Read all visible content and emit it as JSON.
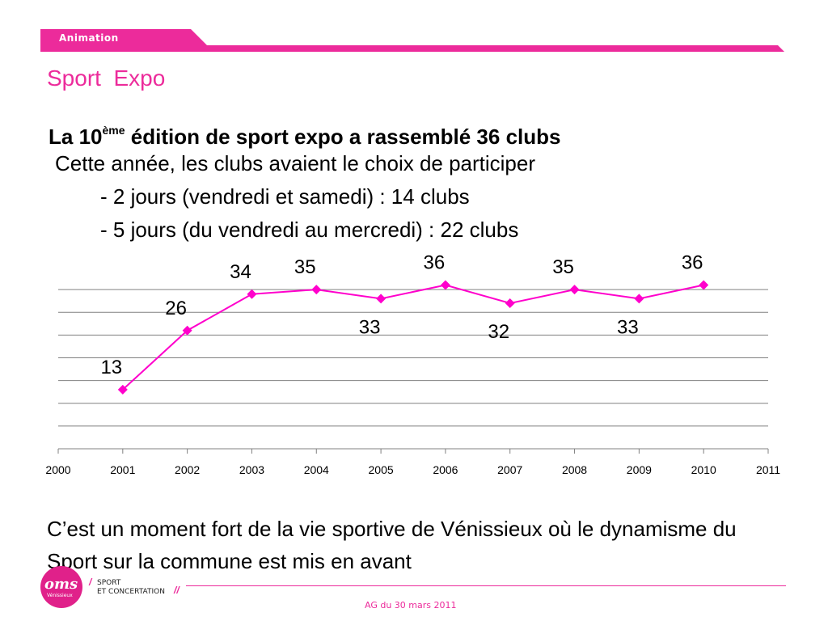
{
  "header": {
    "section_label": "Animation",
    "accent_color": "#ec2b9b"
  },
  "title": "Sport  Expo",
  "body": {
    "heading_prefix": "La 10",
    "heading_sup": "ème",
    "heading_rest": " édition de sport expo a rassemblé 36 clubs",
    "line2": "Cette année, les clubs avaient le choix de participer",
    "line3": "- 2 jours (vendredi et samedi) : 14 clubs",
    "line4": "- 5 jours (du vendredi au mercredi) : 22 clubs"
  },
  "chart_data": {
    "type": "line",
    "x": [
      2001,
      2002,
      2003,
      2004,
      2005,
      2006,
      2007,
      2008,
      2009,
      2010
    ],
    "x_ticks": [
      "2000",
      "2001",
      "2002",
      "2003",
      "2004",
      "2005",
      "2006",
      "2007",
      "2008",
      "2009",
      "2010",
      "2011"
    ],
    "series": [
      {
        "values": [
          13,
          26,
          34,
          35,
          33,
          36,
          32,
          35,
          33,
          36
        ],
        "color": "#ff00cc",
        "marker": "diamond"
      }
    ],
    "data_labels": [
      "13",
      "26",
      "34",
      "35",
      "33",
      "36",
      "32",
      "35",
      "33",
      "36"
    ],
    "label_positions": [
      "above",
      "above",
      "above",
      "above",
      "below",
      "above",
      "below",
      "above",
      "below",
      "above"
    ],
    "xlim": [
      2000,
      2011
    ],
    "ylim": [
      0,
      40
    ],
    "grid": true,
    "legend": false,
    "title": "",
    "xlabel": "",
    "ylabel": ""
  },
  "footer": {
    "quote": "C’est un moment fort de la vie sportive de Vénissieux où le dynamisme du Sport sur la commune est mis en avant",
    "date": "AG du 30 mars 2011",
    "logo_text": "oms",
    "logo_sub": "Vénissieux",
    "brand_line1": "SPORT",
    "brand_line2": "ET CONCERTATION",
    "brand_slash": "//"
  }
}
